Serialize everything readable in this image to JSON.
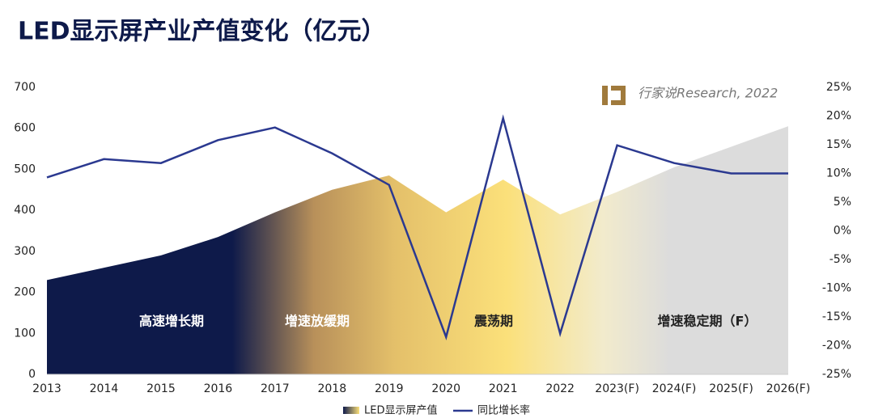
{
  "chart_data": {
    "type": "area-line",
    "title": "LED显示屏产业产值变化（亿元）",
    "watermark": "行家说Research, 2022",
    "categories": [
      "2013",
      "2014",
      "2015",
      "2016",
      "2017",
      "2018",
      "2019",
      "2020",
      "2021",
      "2022",
      "2023(F)",
      "2024(F)",
      "2025(F)",
      "2026(F)"
    ],
    "series": [
      {
        "name": "LED显示屏产值",
        "values": [
          230,
          260,
          290,
          335,
          395,
          450,
          485,
          395,
          475,
          390,
          445,
          505,
          555,
          605
        ]
      },
      {
        "name": "同比增长率",
        "color": "#2b3990",
        "axis": "y2",
        "values": [
          9.3,
          12.5,
          11.8,
          15.8,
          18,
          13.5,
          8,
          -18.5,
          19.6,
          -17.9,
          14.9,
          11.8,
          10,
          10
        ]
      }
    ],
    "annotations": [
      "高速增长期",
      "增速放缓期",
      "震荡期",
      "增速稳定期（F）"
    ],
    "ylim": [
      0,
      700
    ],
    "yticks": [
      0,
      100,
      200,
      300,
      400,
      500,
      600,
      700
    ],
    "y2lim": [
      -25,
      25
    ],
    "y2ticks": [
      {
        "value": -25,
        "label": "-25%"
      },
      {
        "value": -20,
        "label": "-20%"
      },
      {
        "value": -15,
        "label": "-15%"
      },
      {
        "value": -10,
        "label": "-10%"
      },
      {
        "value": -5,
        "label": "-5%"
      },
      {
        "value": 0,
        "label": "0%"
      },
      {
        "value": 5,
        "label": "5%"
      },
      {
        "value": 10,
        "label": "10%"
      },
      {
        "value": 15,
        "label": "15%"
      },
      {
        "value": 20,
        "label": "20%"
      },
      {
        "value": 25,
        "label": "25%"
      }
    ]
  }
}
